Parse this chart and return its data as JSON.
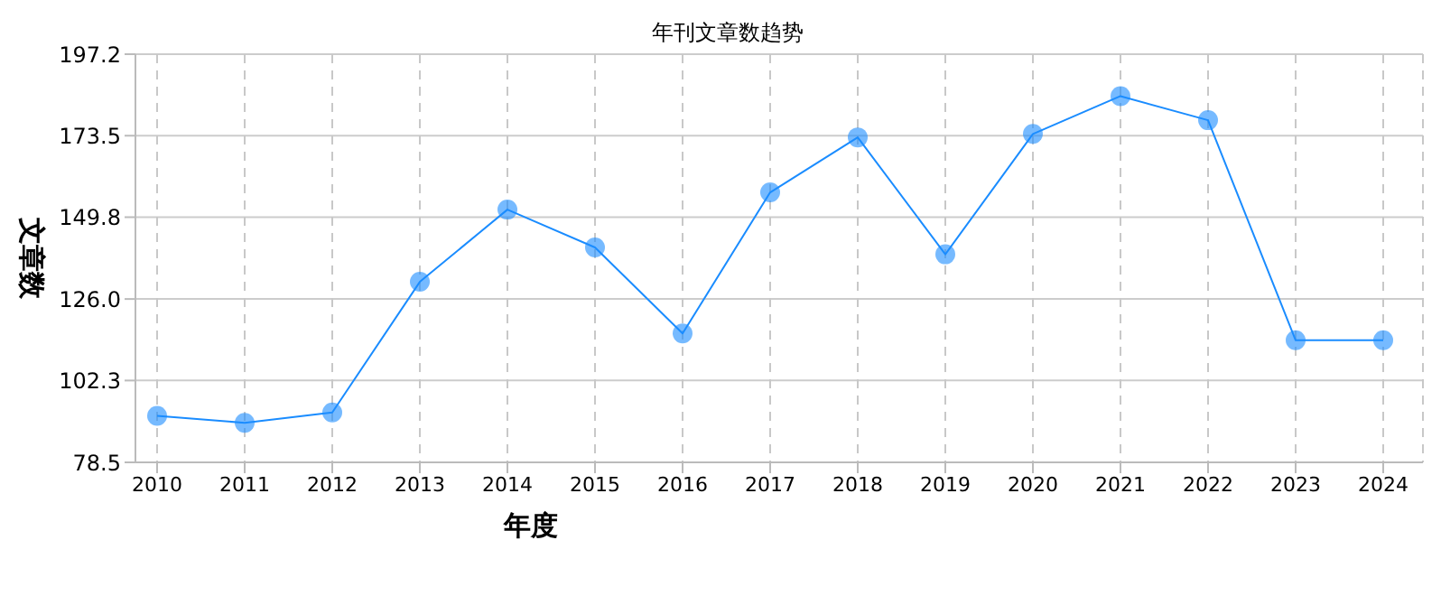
{
  "chart_data": {
    "type": "line",
    "title": "年刊文章数趋势",
    "xlabel": "年度",
    "ylabel": "文章数",
    "categories": [
      "2010",
      "2011",
      "2012",
      "2013",
      "2014",
      "2015",
      "2016",
      "2017",
      "2018",
      "2019",
      "2020",
      "2021",
      "2022",
      "2023",
      "2024"
    ],
    "series": [
      {
        "color": "#1a8cff",
        "values": [
          92,
          90,
          93,
          131,
          152,
          141,
          116,
          157,
          173,
          139,
          174,
          185,
          178,
          114,
          114
        ]
      }
    ],
    "ylim": [
      78.5,
      197.2
    ],
    "yticks": [
      78.5,
      102.3,
      {
        "value": 126,
        "label": "126.0"
      },
      149.8,
      173.5,
      197.2
    ],
    "grid": true,
    "marker": "circle",
    "line_style": "solid",
    "legend": false
  }
}
